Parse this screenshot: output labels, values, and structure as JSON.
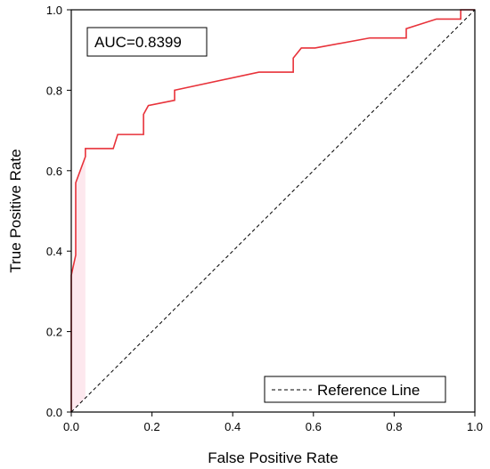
{
  "chart_data": {
    "type": "line",
    "title": "",
    "xlabel": "False Positive Rate",
    "ylabel": "True Positive Rate",
    "xlim": [
      0,
      1
    ],
    "ylim": [
      0,
      1
    ],
    "x_ticks": [
      "0.0",
      "0.2",
      "0.4",
      "0.6",
      "0.8",
      "1.0"
    ],
    "y_ticks": [
      "0.0",
      "0.2",
      "0.4",
      "0.6",
      "0.8",
      "1.0"
    ],
    "grid": false,
    "annotation": "AUC=0.8399",
    "legend": {
      "position": "bottom-right",
      "entries": [
        "Reference Line"
      ]
    },
    "series": [
      {
        "color": "#e8323a",
        "style": "solid",
        "x": [
          0.0,
          0.0,
          0.011,
          0.011,
          0.035,
          0.035,
          0.104,
          0.115,
          0.179,
          0.179,
          0.191,
          0.256,
          0.256,
          0.465,
          0.55,
          0.55,
          0.57,
          0.604,
          0.74,
          0.83,
          0.83,
          0.905,
          0.965,
          0.965,
          1.0
        ],
        "y": [
          0.0,
          0.34,
          0.39,
          0.57,
          0.635,
          0.655,
          0.655,
          0.69,
          0.69,
          0.74,
          0.762,
          0.775,
          0.8,
          0.845,
          0.845,
          0.88,
          0.905,
          0.905,
          0.93,
          0.93,
          0.953,
          0.977,
          0.977,
          1.0,
          1.0
        ]
      },
      {
        "name": "Reference Line",
        "color": "#000000",
        "style": "dashed",
        "x": [
          0,
          1
        ],
        "y": [
          0,
          1
        ]
      }
    ]
  }
}
